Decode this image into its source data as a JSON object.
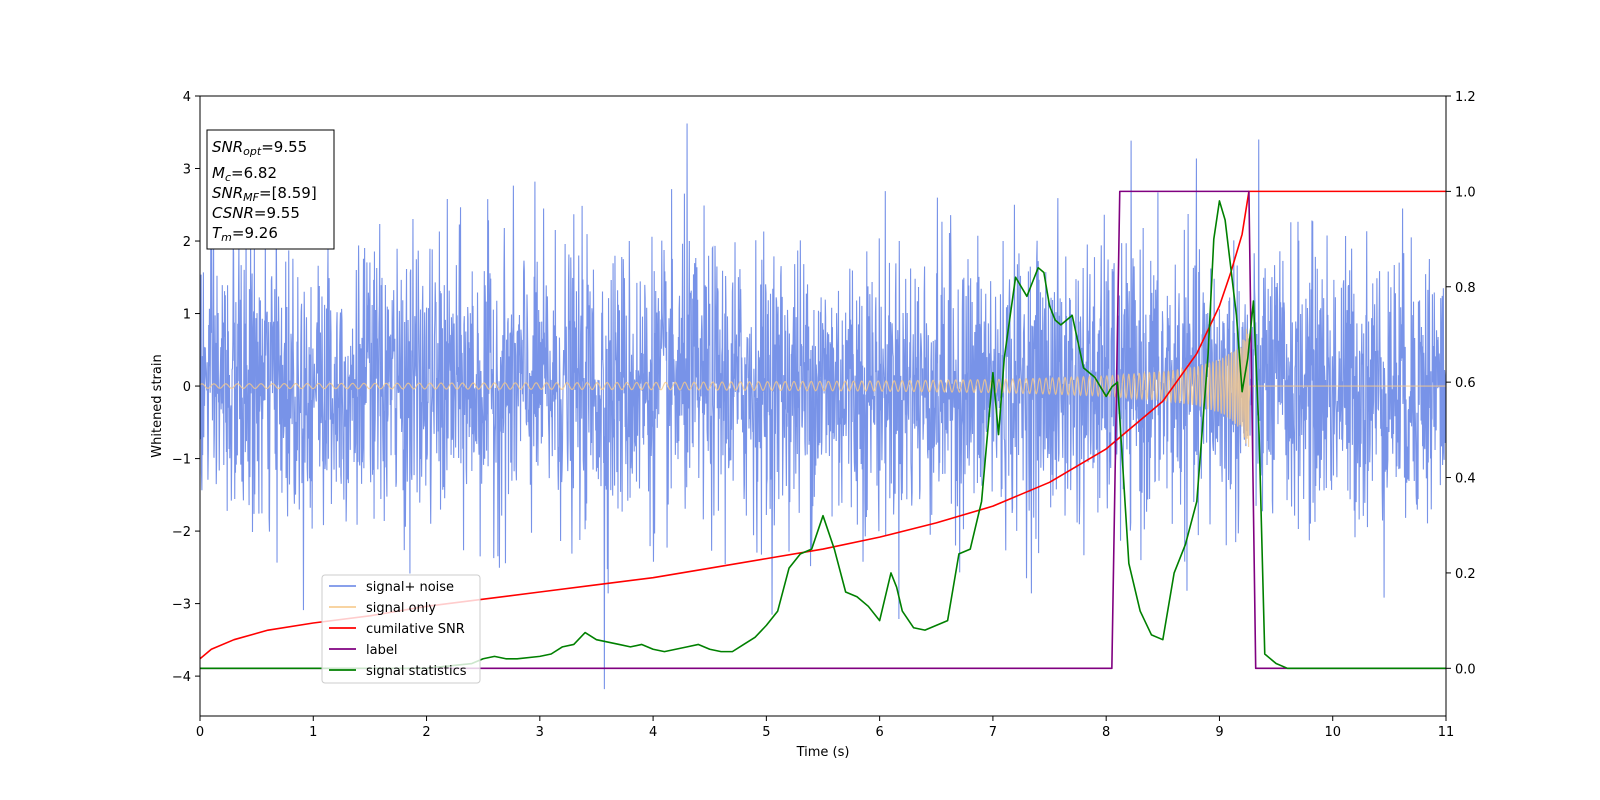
{
  "chart_data": {
    "type": "line",
    "xlabel": "Time (s)",
    "ylabel_left": "Whitened strain",
    "ylabel_right": "",
    "xlim": [
      0,
      11
    ],
    "ylim_left": [
      -4.55,
      4
    ],
    "ylim_right": [
      -0.1,
      1.2
    ],
    "x_ticks": [
      0,
      1,
      2,
      3,
      4,
      5,
      6,
      7,
      8,
      9,
      10,
      11
    ],
    "y_left_ticks": [
      -4,
      -3,
      -2,
      -1,
      0,
      1,
      2,
      3,
      4
    ],
    "y_left_tick_labels": [
      "−4",
      "−3",
      "−2",
      "−1",
      "0",
      "1",
      "2",
      "3",
      "4"
    ],
    "y_right_ticks": [
      0.0,
      0.2,
      0.4,
      0.6,
      0.8,
      1.0,
      1.2
    ],
    "y_right_tick_labels": [
      "0.0",
      "0.2",
      "0.4",
      "0.6",
      "0.8",
      "1.0",
      "1.2"
    ],
    "grid": false,
    "legend_position": "lower-left",
    "info_box": {
      "snr_opt": {
        "name": "SNR",
        "sub": "opt",
        "value": "=9.55"
      },
      "mc": {
        "name": "M",
        "sub": "c",
        "value": "=6.82"
      },
      "snr_mf": {
        "name": "SNR",
        "sub": "MF",
        "value": "=[8.59]"
      },
      "csnr": {
        "name": "CSNR",
        "sub": "",
        "value": "=9.55"
      },
      "tm": {
        "name": "T",
        "sub": "m",
        "value": "=9.26"
      }
    },
    "noise": {
      "name": "signal+ noise",
      "color": "#7893e8",
      "axis": "left",
      "t_start": 0,
      "t_end": 11,
      "typical_range": [
        -2.6,
        2.6
      ],
      "max": 3.62,
      "max_t": 4.3,
      "min": -4.18,
      "min_t": 3.57
    },
    "signal": {
      "name": "signal only",
      "color": "#f6c98a",
      "axis": "left",
      "t_start": 0,
      "t_merge": 9.26,
      "amplitude_t": [
        0,
        2,
        4,
        5,
        6,
        7,
        7.5,
        8,
        8.5,
        8.8,
        9.0,
        9.1,
        9.2,
        9.26
      ],
      "amplitude": [
        0.03,
        0.04,
        0.05,
        0.06,
        0.07,
        0.09,
        0.11,
        0.14,
        0.2,
        0.27,
        0.37,
        0.46,
        0.62,
        0.95
      ]
    },
    "series": [
      {
        "name": "cumilative SNR",
        "color": "#ff0000",
        "axis": "right",
        "x": [
          0,
          0.1,
          0.3,
          0.6,
          1,
          1.5,
          2,
          2.5,
          3,
          3.5,
          4,
          4.5,
          5,
          5.5,
          6,
          6.5,
          7,
          7.5,
          8,
          8.5,
          8.8,
          9.0,
          9.1,
          9.2,
          9.26,
          11
        ],
        "y": [
          0.02,
          0.04,
          0.06,
          0.08,
          0.095,
          0.11,
          0.13,
          0.145,
          0.16,
          0.175,
          0.19,
          0.21,
          0.23,
          0.25,
          0.275,
          0.305,
          0.34,
          0.39,
          0.46,
          0.56,
          0.66,
          0.76,
          0.83,
          0.91,
          1.0,
          1.0
        ]
      },
      {
        "name": "label",
        "color": "#800080",
        "axis": "right",
        "x": [
          0,
          8.05,
          8.12,
          9.26,
          9.32,
          11
        ],
        "y": [
          0,
          0,
          1,
          1,
          0,
          0
        ]
      },
      {
        "name": "signal statistics",
        "color": "#008000",
        "axis": "right",
        "x": [
          0,
          1,
          2,
          2.4,
          2.5,
          2.6,
          2.7,
          2.8,
          3.0,
          3.1,
          3.2,
          3.3,
          3.4,
          3.5,
          3.6,
          3.7,
          3.8,
          3.9,
          4.0,
          4.1,
          4.2,
          4.3,
          4.4,
          4.5,
          4.6,
          4.7,
          4.8,
          4.9,
          5.0,
          5.1,
          5.2,
          5.3,
          5.4,
          5.5,
          5.6,
          5.7,
          5.8,
          5.9,
          6.0,
          6.1,
          6.15,
          6.2,
          6.3,
          6.4,
          6.5,
          6.6,
          6.7,
          6.8,
          6.9,
          7.0,
          7.05,
          7.1,
          7.2,
          7.3,
          7.35,
          7.4,
          7.45,
          7.5,
          7.55,
          7.6,
          7.7,
          7.8,
          7.9,
          8.0,
          8.05,
          8.1,
          8.2,
          8.3,
          8.4,
          8.5,
          8.6,
          8.7,
          8.8,
          8.9,
          8.95,
          9.0,
          9.05,
          9.1,
          9.15,
          9.2,
          9.25,
          9.3,
          9.35,
          9.4,
          9.5,
          9.6,
          10,
          11
        ],
        "y": [
          0.0,
          0.0,
          0.0,
          0.01,
          0.02,
          0.025,
          0.02,
          0.02,
          0.025,
          0.03,
          0.045,
          0.05,
          0.075,
          0.06,
          0.055,
          0.05,
          0.045,
          0.05,
          0.04,
          0.035,
          0.04,
          0.045,
          0.05,
          0.04,
          0.035,
          0.035,
          0.05,
          0.065,
          0.09,
          0.12,
          0.21,
          0.24,
          0.25,
          0.32,
          0.25,
          0.16,
          0.15,
          0.13,
          0.1,
          0.2,
          0.17,
          0.12,
          0.085,
          0.08,
          0.09,
          0.1,
          0.24,
          0.25,
          0.35,
          0.62,
          0.49,
          0.65,
          0.82,
          0.78,
          0.81,
          0.84,
          0.83,
          0.76,
          0.73,
          0.72,
          0.74,
          0.63,
          0.61,
          0.57,
          0.59,
          0.6,
          0.22,
          0.12,
          0.07,
          0.06,
          0.2,
          0.26,
          0.35,
          0.66,
          0.9,
          0.98,
          0.94,
          0.84,
          0.74,
          0.58,
          0.65,
          0.77,
          0.49,
          0.03,
          0.01,
          0.0,
          0.0,
          0.0
        ]
      }
    ]
  }
}
